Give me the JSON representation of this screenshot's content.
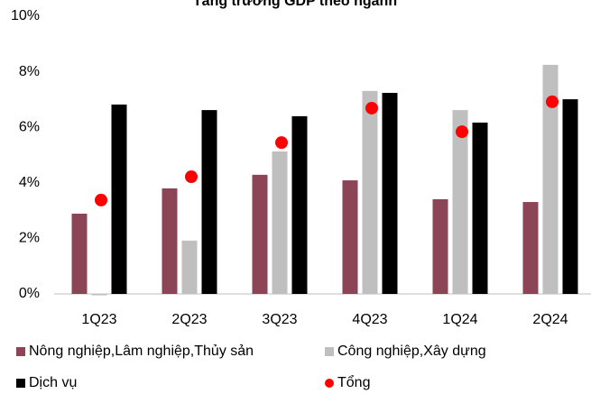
{
  "chart_data": {
    "type": "bar",
    "title": "Tăng trưởng GDP theo ngành",
    "categories": [
      "1Q23",
      "2Q23",
      "3Q23",
      "4Q23",
      "1Q24",
      "2Q24"
    ],
    "series": [
      {
        "name": "Nông nghiệp,Lâm nghiệp,Thủy sản",
        "color": "#8b4556",
        "type": "bar",
        "values": [
          2.89,
          3.8,
          4.29,
          4.09,
          3.41,
          3.31
        ]
      },
      {
        "name": "Công nghiệp,Xây dựng",
        "color": "#bfbfbf",
        "type": "bar",
        "values": [
          -0.05,
          1.92,
          5.13,
          7.31,
          6.62,
          8.25
        ]
      },
      {
        "name": "Dịch vụ",
        "color": "#000000",
        "type": "bar",
        "values": [
          6.82,
          6.62,
          6.4,
          7.24,
          6.17,
          7.01
        ]
      },
      {
        "name": "Tổng",
        "color": "#ff0000",
        "type": "scatter",
        "values": [
          3.38,
          4.22,
          5.45,
          6.69,
          5.84,
          6.92
        ]
      }
    ],
    "ylim": [
      0,
      10
    ],
    "yticks": [
      {
        "value": 0,
        "label": "0%"
      },
      {
        "value": 2,
        "label": "2%"
      },
      {
        "value": 4,
        "label": "4%"
      },
      {
        "value": 6,
        "label": "6%"
      },
      {
        "value": 8,
        "label": "8%"
      },
      {
        "value": 10,
        "label": "10%"
      }
    ],
    "grid": false
  }
}
